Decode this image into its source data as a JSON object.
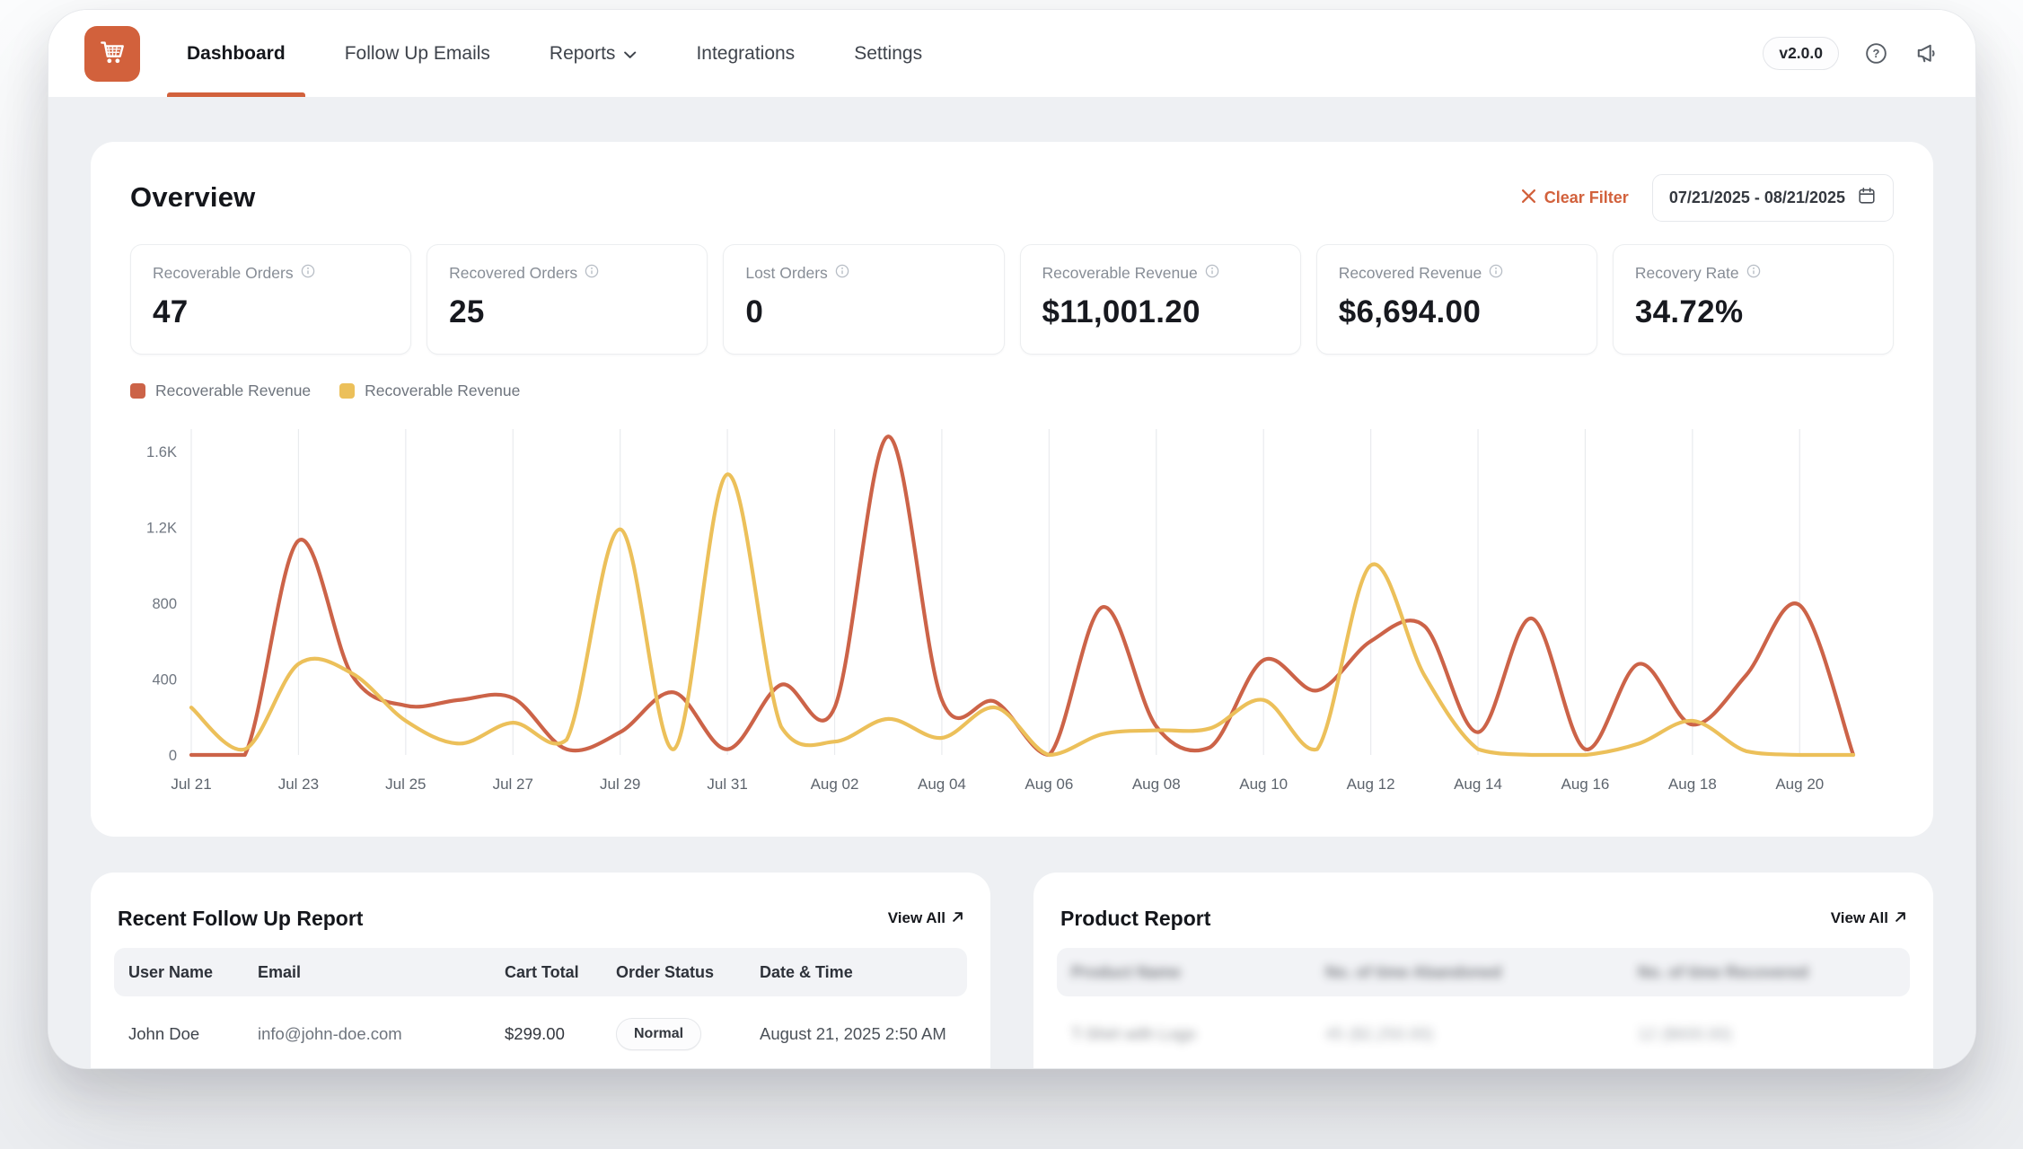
{
  "nav": {
    "items": [
      {
        "label": "Dashboard",
        "active": true
      },
      {
        "label": "Follow Up Emails",
        "active": false
      },
      {
        "label": "Reports",
        "active": false,
        "has_dropdown": true
      },
      {
        "label": "Integrations",
        "active": false
      },
      {
        "label": "Settings",
        "active": false
      }
    ],
    "version_badge": "v2.0.0",
    "icons": [
      "cart-logo-icon",
      "help-icon",
      "announcement-icon"
    ]
  },
  "overview": {
    "title": "Overview",
    "clear_filter_label": "Clear Filter",
    "date_range": "07/21/2025 - 08/21/2025",
    "accent_color": "#d2613c"
  },
  "stats": [
    {
      "label": "Recoverable Orders",
      "value": "47"
    },
    {
      "label": "Recovered Orders",
      "value": "25"
    },
    {
      "label": "Lost Orders",
      "value": "0"
    },
    {
      "label": "Recoverable Revenue",
      "value": "$11,001.20"
    },
    {
      "label": "Recovered Revenue",
      "value": "$6,694.00"
    },
    {
      "label": "Recovery Rate",
      "value": "34.72%"
    }
  ],
  "chart_data": {
    "type": "line",
    "title": "",
    "xlabel": "",
    "ylabel": "",
    "ylim": [
      0,
      1700
    ],
    "grid": "vertical-only",
    "legend_position": "top-left",
    "days_span": 31,
    "x_tick_labels": [
      "Jul 21",
      "Jul 23",
      "Jul 25",
      "Jul 27",
      "Jul 29",
      "Jul 31",
      "Aug 02",
      "Aug 04",
      "Aug 06",
      "Aug 08",
      "Aug 10",
      "Aug 12",
      "Aug 14",
      "Aug 16",
      "Aug 18",
      "Aug 20"
    ],
    "y_ticks": [
      {
        "v": 0,
        "label": "0"
      },
      {
        "v": 400,
        "label": "400"
      },
      {
        "v": 800,
        "label": "800"
      },
      {
        "v": 1200,
        "label": "1.2K"
      },
      {
        "v": 1600,
        "label": "1.6K"
      }
    ],
    "series": [
      {
        "name": "Recoverable Revenue",
        "color": "#cc6348",
        "x_days": "daily from Jul 21 to Aug 21",
        "values": [
          0,
          0,
          1130,
          420,
          260,
          290,
          300,
          30,
          120,
          330,
          30,
          370,
          250,
          1680,
          290,
          280,
          0,
          780,
          150,
          40,
          500,
          340,
          600,
          680,
          120,
          720,
          30,
          480,
          160,
          420,
          790,
          0
        ]
      },
      {
        "name": "Recoverable Revenue",
        "color": "#ecc05a",
        "x_days": "daily from Jul 21 to Aug 21",
        "values": [
          250,
          30,
          480,
          430,
          180,
          60,
          170,
          80,
          1190,
          30,
          1480,
          150,
          70,
          190,
          90,
          250,
          0,
          110,
          130,
          140,
          290,
          30,
          1000,
          420,
          30,
          0,
          0,
          60,
          180,
          20,
          0,
          0
        ]
      }
    ]
  },
  "follow_up": {
    "title": "Recent Follow Up Report",
    "view_all": "View All",
    "columns": [
      "User Name",
      "Email",
      "Cart Total",
      "Order Status",
      "Date & Time"
    ],
    "rows": [
      {
        "user": "John Doe",
        "email": "info@john-doe.com",
        "cart_total": "$299.00",
        "status": "Normal",
        "datetime": "August 21, 2025 2:50 AM"
      }
    ]
  },
  "product_report": {
    "title": "Product Report",
    "view_all": "View All",
    "blurred": true,
    "columns": [
      "Product Name",
      "No. of time Abandoned",
      "No. of time Recovered"
    ],
    "rows": [
      {
        "name": "T-Shirt with Logo",
        "abandoned": "45 ($2,250.00)",
        "recovered": "12 ($600.00)"
      }
    ]
  }
}
